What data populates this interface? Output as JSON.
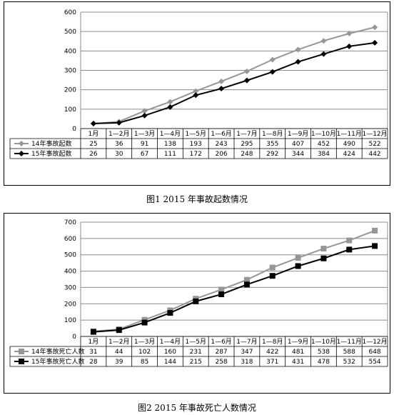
{
  "figures": [
    {
      "caption": "图1   2015 年事故起数情况",
      "chart_data": {
        "type": "line",
        "categories": [
          "1月",
          "1—2月",
          "1—3月",
          "1—4月",
          "1—5月",
          "1—6月",
          "1—7月",
          "1—8月",
          "1—9月",
          "1—10月",
          "1—11月",
          "1—12月"
        ],
        "ylim": [
          0,
          600
        ],
        "yticks": [
          0,
          100,
          200,
          300,
          400,
          500,
          600
        ],
        "grid": true,
        "legend": "data-table",
        "series": [
          {
            "name": "14年事故起数",
            "color": "#969696",
            "marker": "diamond",
            "values": [
              25,
              36,
              91,
              138,
              193,
              243,
              295,
              355,
              407,
              452,
              490,
              522
            ]
          },
          {
            "name": "15年事故起数",
            "color": "#000000",
            "marker": "diamond",
            "values": [
              26,
              30,
              67,
              111,
              172,
              206,
              248,
              292,
              344,
              384,
              424,
              442
            ]
          }
        ]
      }
    },
    {
      "caption": "图2   2015 年事故死亡人数情况",
      "chart_data": {
        "type": "line",
        "categories": [
          "1月",
          "1—2月",
          "1—3月",
          "1—4月",
          "1—5月",
          "1—6月",
          "1—7月",
          "1—8月",
          "1—9月",
          "1—10月",
          "1—11月",
          "1—12月"
        ],
        "ylim": [
          0,
          700
        ],
        "yticks": [
          0,
          100,
          200,
          300,
          400,
          500,
          600,
          700
        ],
        "grid": true,
        "legend": "data-table",
        "series": [
          {
            "name": "14年事故死亡人数",
            "color": "#969696",
            "marker": "square",
            "values": [
              31,
              44,
              102,
              160,
              231,
              287,
              347,
              422,
              481,
              538,
              588,
              648
            ]
          },
          {
            "name": "15年事故死亡人数",
            "color": "#000000",
            "marker": "square",
            "values": [
              28,
              39,
              85,
              144,
              215,
              258,
              318,
              371,
              431,
              478,
              532,
              554
            ]
          }
        ]
      }
    }
  ]
}
